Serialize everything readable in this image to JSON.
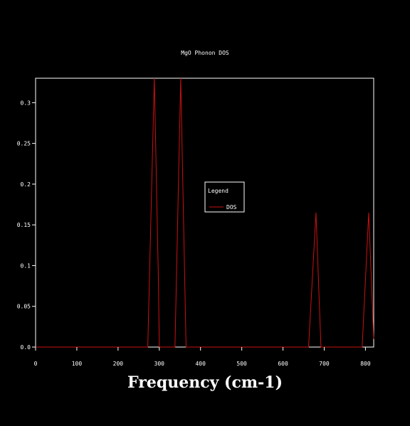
{
  "chart_data": {
    "type": "line",
    "title": "MgO Phonon DOS",
    "xlabel": "Frequency (cm-1)",
    "ylabel": "",
    "xlim": [
      0,
      820
    ],
    "ylim": [
      0,
      0.33
    ],
    "x_ticks": [
      "0",
      "100",
      "200",
      "300",
      "400",
      "500",
      "600",
      "700",
      "800"
    ],
    "y_ticks": [
      "0.0",
      "0.05",
      "0.1",
      "0.15",
      "0.2",
      "0.25",
      "0.3"
    ],
    "grid": false,
    "legend": {
      "title": "Legend",
      "placement": "center",
      "entries": [
        "DOS"
      ]
    },
    "series": [
      {
        "name": "DOS",
        "color": "#cc1111",
        "x": [
          0,
          272,
          288,
          298,
          300,
          338,
          352,
          365,
          400,
          662,
          680,
          692,
          700,
          792,
          808,
          820
        ],
        "y": [
          0,
          0,
          0.33,
          0.08,
          0,
          0,
          0.33,
          0,
          0,
          0,
          0.165,
          0,
          0,
          0,
          0.165,
          0.01
        ]
      }
    ]
  }
}
